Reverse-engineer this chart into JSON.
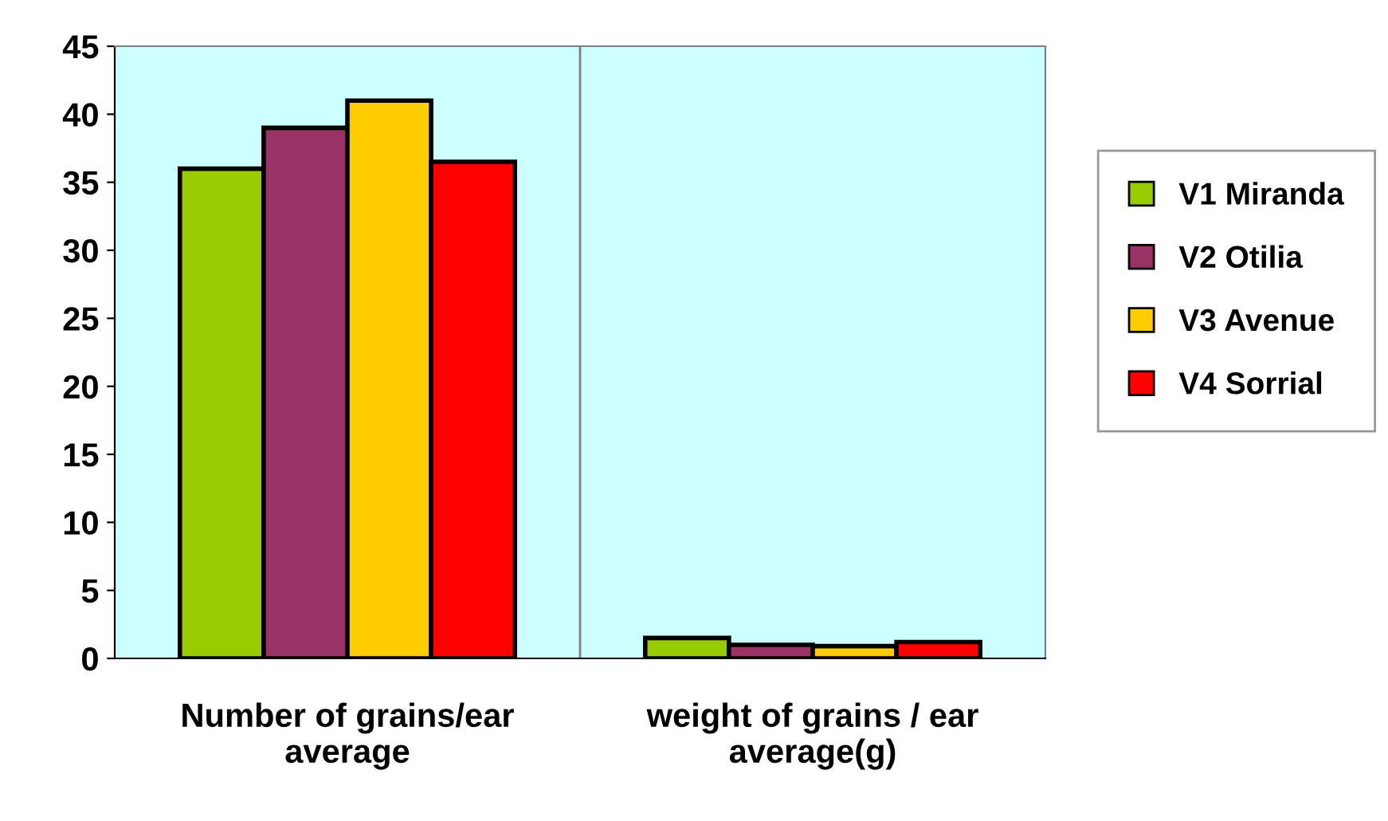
{
  "chart_data": {
    "type": "bar",
    "categories": [
      "Number of grains/ear\naverage",
      "weight of grains / ear\naverage(g)"
    ],
    "series": [
      {
        "name": "V1 Miranda",
        "color": "#99cc00",
        "values": [
          36,
          1.5
        ]
      },
      {
        "name": "V2 Otilia",
        "color": "#993366",
        "values": [
          39,
          1.0
        ]
      },
      {
        "name": "V3 Avenue",
        "color": "#ffcc00",
        "values": [
          41,
          0.9
        ]
      },
      {
        "name": "V4 Sorrial",
        "color": "#ff0000",
        "values": [
          36.5,
          1.2
        ]
      }
    ],
    "ylim": [
      0,
      45
    ],
    "yticks": [
      0,
      5,
      10,
      15,
      20,
      25,
      30,
      35,
      40,
      45
    ],
    "grid": "x",
    "legend": "right"
  }
}
